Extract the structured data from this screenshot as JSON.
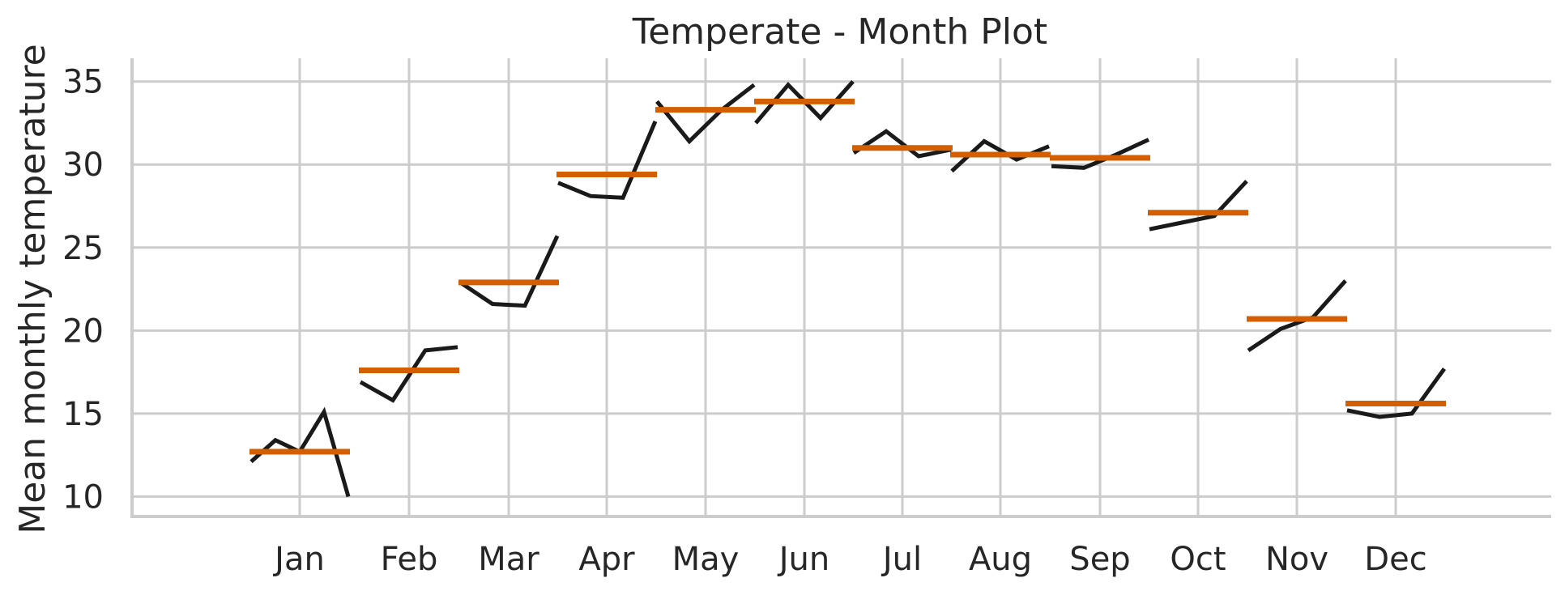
{
  "chart_data": {
    "type": "line",
    "title": "Temperate - Month Plot",
    "xlabel": "",
    "ylabel": "Mean monthly temperature",
    "ylim": [
      8.8,
      36.4
    ],
    "yticks": [
      "10",
      "15",
      "20",
      "25",
      "30",
      "35"
    ],
    "grid": true,
    "colors": {
      "series": "#1a1a1a",
      "mean": "#d45f00",
      "grid": "#cccccc",
      "axis": "#cccccc"
    },
    "months": [
      {
        "label": "Jan",
        "values": [
          12.1,
          13.4,
          12.7,
          15.1,
          10.0
        ],
        "mean": 12.7
      },
      {
        "label": "Feb",
        "values": [
          16.9,
          15.8,
          18.8,
          19.0
        ],
        "mean": 17.6
      },
      {
        "label": "Mar",
        "values": [
          22.9,
          21.6,
          21.5,
          25.7
        ],
        "mean": 22.9
      },
      {
        "label": "Apr",
        "values": [
          28.9,
          28.1,
          28.0,
          32.6
        ],
        "mean": 29.4
      },
      {
        "label": "May",
        "values": [
          33.8,
          31.4,
          33.3,
          34.8
        ],
        "mean": 33.3
      },
      {
        "label": "Jun",
        "values": [
          32.5,
          34.8,
          32.8,
          35.0
        ],
        "mean": 33.8
      },
      {
        "label": "Jul",
        "values": [
          30.7,
          32.0,
          30.5,
          30.9
        ],
        "mean": 31.0
      },
      {
        "label": "Aug",
        "values": [
          29.6,
          31.4,
          30.3,
          31.1
        ],
        "mean": 30.6
      },
      {
        "label": "Sep",
        "values": [
          29.9,
          29.8,
          30.6,
          31.5
        ],
        "mean": 30.4
      },
      {
        "label": "Oct",
        "values": [
          26.1,
          26.5,
          26.9,
          29.0
        ],
        "mean": 27.1
      },
      {
        "label": "Nov",
        "values": [
          18.8,
          20.1,
          20.8,
          23.0
        ],
        "mean": 20.7
      },
      {
        "label": "Dec",
        "values": [
          15.2,
          14.8,
          15.0,
          17.7
        ],
        "mean": 15.6
      }
    ]
  }
}
